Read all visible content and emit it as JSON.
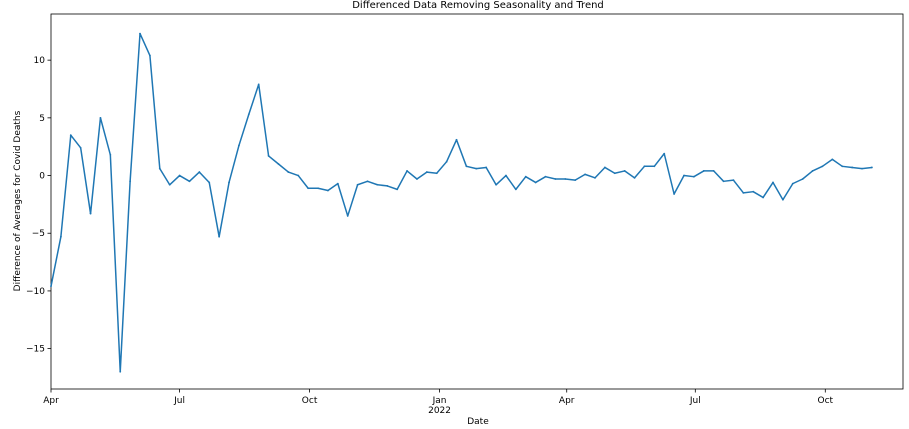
{
  "chart_data": {
    "type": "line",
    "title": "Differenced Data Removing Seasonality and Trend",
    "xlabel": "Date",
    "ylabel": "Difference of Averages for Covid Deaths",
    "xlim": [
      "2021-04-01",
      "2022-11-25"
    ],
    "ylim": [
      -18.5,
      14
    ],
    "grid": false,
    "line_color": "#1f77b4",
    "x_ticks": [
      {
        "date": "2021-04-01",
        "label": "Apr",
        "sublabel": ""
      },
      {
        "date": "2021-07-01",
        "label": "Jul",
        "sublabel": ""
      },
      {
        "date": "2021-10-01",
        "label": "Oct",
        "sublabel": ""
      },
      {
        "date": "2022-01-01",
        "label": "Jan",
        "sublabel": "2022"
      },
      {
        "date": "2022-04-01",
        "label": "Apr",
        "sublabel": ""
      },
      {
        "date": "2022-07-01",
        "label": "Jul",
        "sublabel": ""
      },
      {
        "date": "2022-10-01",
        "label": "Oct",
        "sublabel": ""
      }
    ],
    "y_ticks": [
      -15,
      -10,
      -5,
      0,
      5,
      10
    ],
    "series": [
      {
        "name": "",
        "points": [
          [
            "2021-04-01",
            -9.6
          ],
          [
            "2021-04-08",
            -5.3
          ],
          [
            "2021-04-15",
            3.5
          ],
          [
            "2021-04-22",
            2.4
          ],
          [
            "2021-04-29",
            -3.3
          ],
          [
            "2021-05-06",
            5.0
          ],
          [
            "2021-05-13",
            1.8
          ],
          [
            "2021-05-20",
            -17.0
          ],
          [
            "2021-05-27",
            -0.5
          ],
          [
            "2021-06-03",
            12.3
          ],
          [
            "2021-06-10",
            10.4
          ],
          [
            "2021-06-17",
            0.6
          ],
          [
            "2021-06-24",
            -0.8
          ],
          [
            "2021-07-01",
            0.0
          ],
          [
            "2021-07-08",
            -0.5
          ],
          [
            "2021-07-15",
            0.3
          ],
          [
            "2021-07-22",
            -0.6
          ],
          [
            "2021-07-29",
            -5.3
          ],
          [
            "2021-08-05",
            -0.6
          ],
          [
            "2021-08-12",
            2.6
          ],
          [
            "2021-08-19",
            5.3
          ],
          [
            "2021-08-26",
            7.9
          ],
          [
            "2021-09-02",
            1.7
          ],
          [
            "2021-09-09",
            1.0
          ],
          [
            "2021-09-16",
            0.3
          ],
          [
            "2021-09-23",
            0.0
          ],
          [
            "2021-09-30",
            -1.1
          ],
          [
            "2021-10-07",
            -1.1
          ],
          [
            "2021-10-14",
            -1.3
          ],
          [
            "2021-10-21",
            -0.7
          ],
          [
            "2021-10-28",
            -3.5
          ],
          [
            "2021-11-04",
            -0.8
          ],
          [
            "2021-11-11",
            -0.5
          ],
          [
            "2021-11-18",
            -0.8
          ],
          [
            "2021-11-25",
            -0.9
          ],
          [
            "2021-12-02",
            -1.2
          ],
          [
            "2021-12-09",
            0.4
          ],
          [
            "2021-12-16",
            -0.3
          ],
          [
            "2021-12-23",
            0.3
          ],
          [
            "2021-12-30",
            0.2
          ],
          [
            "2022-01-06",
            1.2
          ],
          [
            "2022-01-13",
            3.1
          ],
          [
            "2022-01-20",
            0.8
          ],
          [
            "2022-01-27",
            0.6
          ],
          [
            "2022-02-03",
            0.7
          ],
          [
            "2022-02-10",
            -0.8
          ],
          [
            "2022-02-17",
            0.0
          ],
          [
            "2022-02-24",
            -1.2
          ],
          [
            "2022-03-03",
            -0.1
          ],
          [
            "2022-03-10",
            -0.6
          ],
          [
            "2022-03-17",
            -0.1
          ],
          [
            "2022-03-24",
            -0.3
          ],
          [
            "2022-03-31",
            -0.3
          ],
          [
            "2022-04-07",
            -0.4
          ],
          [
            "2022-04-14",
            0.1
          ],
          [
            "2022-04-21",
            -0.2
          ],
          [
            "2022-04-28",
            0.7
          ],
          [
            "2022-05-05",
            0.2
          ],
          [
            "2022-05-12",
            0.4
          ],
          [
            "2022-05-19",
            -0.2
          ],
          [
            "2022-05-26",
            0.8
          ],
          [
            "2022-06-02",
            0.8
          ],
          [
            "2022-06-09",
            1.9
          ],
          [
            "2022-06-16",
            -1.6
          ],
          [
            "2022-06-23",
            0.0
          ],
          [
            "2022-06-30",
            -0.1
          ],
          [
            "2022-07-07",
            0.4
          ],
          [
            "2022-07-14",
            0.4
          ],
          [
            "2022-07-21",
            -0.5
          ],
          [
            "2022-07-28",
            -0.4
          ],
          [
            "2022-08-04",
            -1.5
          ],
          [
            "2022-08-11",
            -1.4
          ],
          [
            "2022-08-18",
            -1.9
          ],
          [
            "2022-08-25",
            -0.6
          ],
          [
            "2022-09-01",
            -2.1
          ],
          [
            "2022-09-08",
            -0.7
          ],
          [
            "2022-09-15",
            -0.3
          ],
          [
            "2022-09-22",
            0.4
          ],
          [
            "2022-09-29",
            0.8
          ],
          [
            "2022-10-06",
            1.4
          ],
          [
            "2022-10-13",
            0.8
          ],
          [
            "2022-10-20",
            0.7
          ],
          [
            "2022-10-27",
            0.6
          ],
          [
            "2022-11-03",
            0.7
          ]
        ]
      }
    ]
  }
}
